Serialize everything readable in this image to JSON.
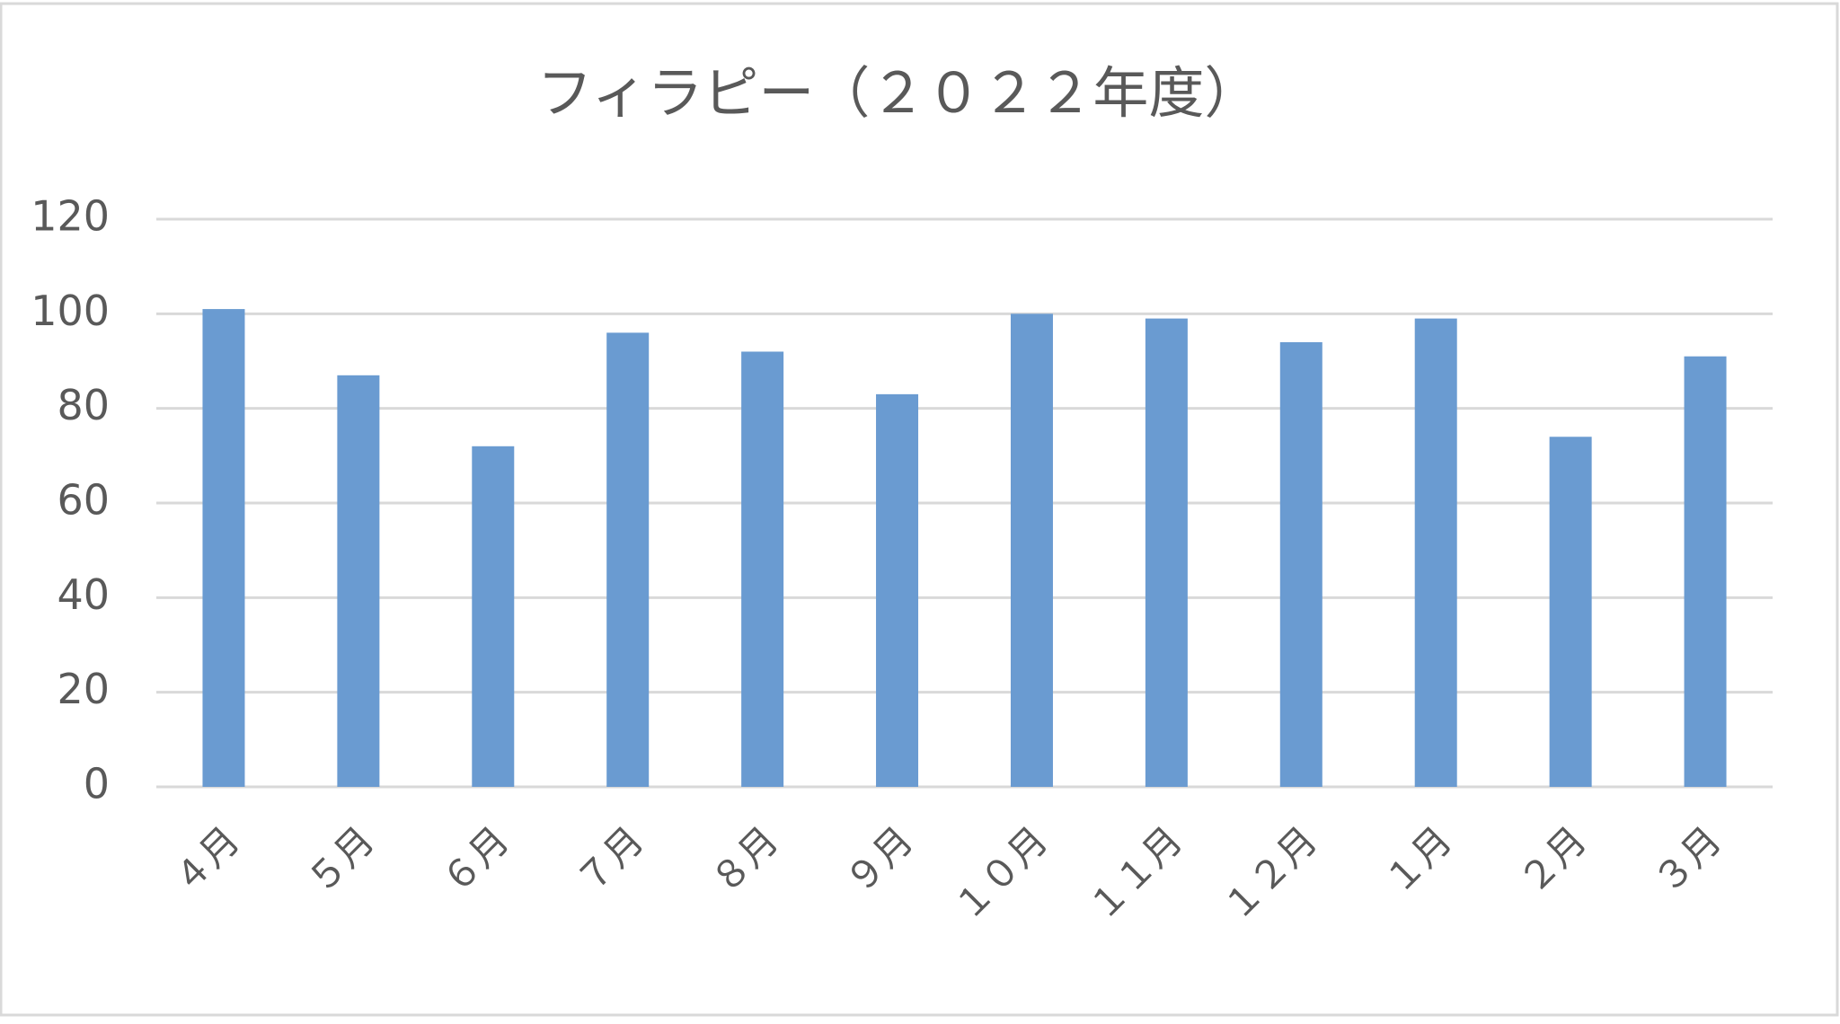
{
  "chart_data": {
    "type": "bar",
    "title": "フィラピー（２０２２年度）",
    "categories": [
      "４月",
      "５月",
      "６月",
      "７月",
      "８月",
      "９月",
      "１０月",
      "１１月",
      "１２月",
      "１月",
      "２月",
      "３月"
    ],
    "values": [
      101,
      87,
      72,
      96,
      92,
      83,
      100,
      99,
      94,
      99,
      74,
      91
    ],
    "color": "#6a9bd1",
    "ylim": [
      0,
      120
    ],
    "yticks": [
      0,
      20,
      40,
      60,
      80,
      100,
      120
    ],
    "grid": true
  }
}
